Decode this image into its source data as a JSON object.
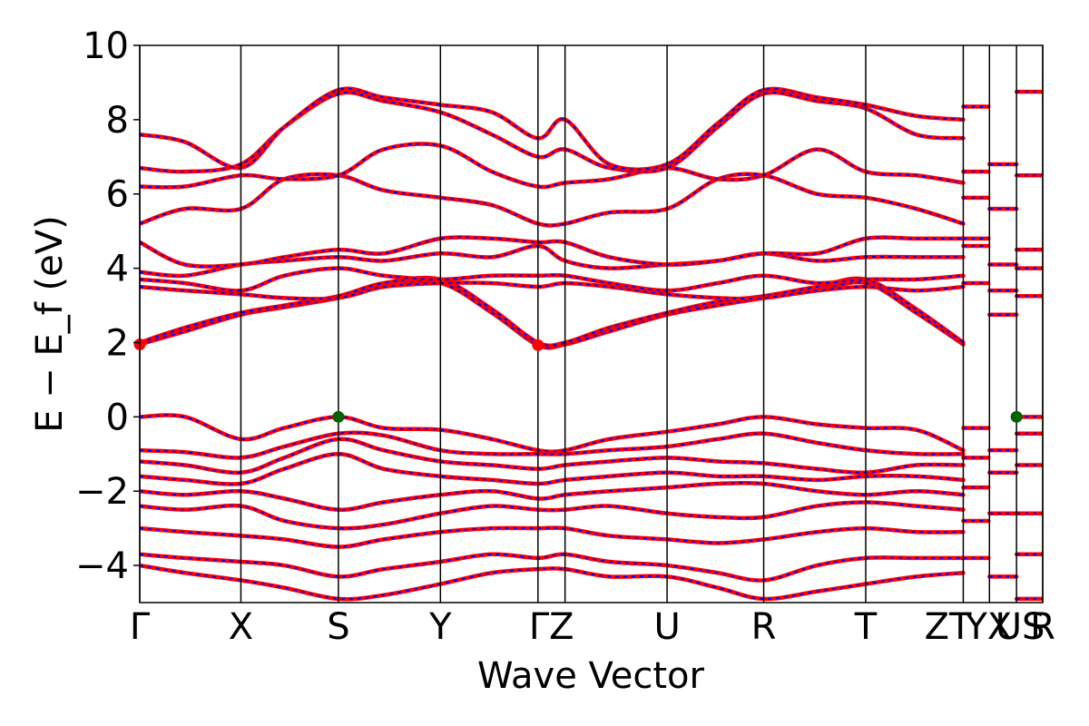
{
  "chart_data": {
    "type": "line",
    "title": "",
    "xlabel": "Wave Vector",
    "ylabel": "E − E_f (eV)",
    "ylim": [
      -5,
      10
    ],
    "yticks": [
      10,
      8,
      6,
      4,
      2,
      0,
      -2,
      -4
    ],
    "grid": false,
    "legend": "none",
    "colors": {
      "band_outer": "#ff0000",
      "band_inner": "#0000ff",
      "extremum": "#006400",
      "cbm_marker": "#ff0000",
      "frame": "#000000"
    },
    "kpath": [
      {
        "label": "Γ",
        "pos": 0.0
      },
      {
        "label": "X",
        "pos": 0.112
      },
      {
        "label": "S",
        "pos": 0.22
      },
      {
        "label": "Y",
        "pos": 0.333
      },
      {
        "label": "Γ",
        "pos": 0.441
      },
      {
        "label": "Z",
        "pos": 0.471
      },
      {
        "label": "U",
        "pos": 0.584
      },
      {
        "label": "R",
        "pos": 0.691
      },
      {
        "label": "T",
        "pos": 0.804
      },
      {
        "label": "Z",
        "pos": 0.912
      },
      {
        "label": "T",
        "pos": 0.912
      },
      {
        "label": "Y",
        "pos": 0.941
      },
      {
        "label": "X",
        "pos": 0.941
      },
      {
        "label": "U",
        "pos": 0.971
      },
      {
        "label": "S",
        "pos": 0.971
      },
      {
        "label": "R",
        "pos": 1.0
      }
    ],
    "tick_labels": [
      {
        "text": "Γ",
        "pos": 0.0
      },
      {
        "text": "X",
        "pos": 0.112
      },
      {
        "text": "S",
        "pos": 0.22
      },
      {
        "text": "Y",
        "pos": 0.333
      },
      {
        "text": "ΓZ",
        "pos": 0.456
      },
      {
        "text": "U",
        "pos": 0.584
      },
      {
        "text": "R",
        "pos": 0.691
      },
      {
        "text": "T",
        "pos": 0.804
      },
      {
        "text": "ZT",
        "pos": 0.895
      },
      {
        "text": "YX",
        "pos": 0.94
      },
      {
        "text": "US",
        "pos": 0.975
      },
      {
        "text": "R",
        "pos": 1.0
      }
    ],
    "markers": [
      {
        "kind": "VBM",
        "x": 0.22,
        "y": 0.0
      },
      {
        "kind": "VBM",
        "x": 0.971,
        "y": 0.0
      },
      {
        "kind": "CBM",
        "x": 0.0,
        "y": 1.95
      },
      {
        "kind": "CBM",
        "x": 0.441,
        "y": 1.93
      }
    ],
    "series": [
      {
        "x": [
          0,
          0.05,
          0.112,
          0.16,
          0.22,
          0.27,
          0.333,
          0.39,
          0.441,
          0.471,
          0.52,
          0.584,
          0.64,
          0.691,
          0.75,
          0.804,
          0.86,
          0.912
        ],
        "values": [
          1.95,
          2.3,
          2.75,
          2.95,
          3.2,
          3.5,
          3.6,
          2.8,
          1.93,
          1.95,
          2.3,
          2.75,
          3.0,
          3.2,
          3.4,
          3.6,
          2.8,
          1.95
        ]
      },
      {
        "x": [
          0,
          0.05,
          0.112,
          0.16,
          0.22,
          0.27,
          0.333,
          0.39,
          0.441,
          0.471,
          0.52,
          0.584,
          0.64,
          0.691,
          0.75,
          0.804,
          0.86,
          0.912
        ],
        "values": [
          2.0,
          2.4,
          2.8,
          3.0,
          3.25,
          3.6,
          3.7,
          2.9,
          2.0,
          2.0,
          2.4,
          2.8,
          3.1,
          3.25,
          3.5,
          3.7,
          2.9,
          2.0
        ]
      },
      {
        "x": [
          0,
          0.05,
          0.112,
          0.16,
          0.22,
          0.27,
          0.333,
          0.39,
          0.441,
          0.471,
          0.52,
          0.584,
          0.64,
          0.691,
          0.75,
          0.804,
          0.86,
          0.912
        ],
        "values": [
          3.5,
          3.4,
          3.3,
          3.2,
          3.2,
          3.5,
          3.6,
          3.6,
          3.5,
          3.6,
          3.5,
          3.3,
          3.2,
          3.2,
          3.4,
          3.5,
          3.4,
          3.5
        ]
      },
      {
        "x": [
          0,
          0.05,
          0.112,
          0.16,
          0.22,
          0.27,
          0.333,
          0.39,
          0.441,
          0.471,
          0.52,
          0.584,
          0.64,
          0.691,
          0.75,
          0.804,
          0.86,
          0.912
        ],
        "values": [
          3.7,
          3.6,
          3.4,
          3.8,
          4.0,
          3.8,
          3.7,
          3.8,
          3.8,
          3.8,
          3.6,
          3.4,
          3.6,
          3.8,
          3.6,
          3.7,
          3.7,
          3.8
        ]
      },
      {
        "x": [
          0,
          0.05,
          0.112,
          0.16,
          0.22,
          0.27,
          0.333,
          0.39,
          0.441,
          0.471,
          0.52,
          0.584,
          0.64,
          0.691,
          0.75,
          0.804,
          0.86,
          0.912
        ],
        "values": [
          3.9,
          3.8,
          4.1,
          4.2,
          4.3,
          4.2,
          4.4,
          4.3,
          4.6,
          4.2,
          4.0,
          4.1,
          4.2,
          4.4,
          4.2,
          4.3,
          4.3,
          4.3
        ]
      },
      {
        "x": [
          0,
          0.05,
          0.112,
          0.16,
          0.22,
          0.27,
          0.333,
          0.39,
          0.441,
          0.471,
          0.52,
          0.584,
          0.64,
          0.691,
          0.75,
          0.804,
          0.86,
          0.912
        ],
        "values": [
          4.7,
          4.1,
          4.1,
          4.3,
          4.5,
          4.4,
          4.8,
          4.8,
          4.7,
          4.7,
          4.3,
          4.1,
          4.2,
          4.4,
          4.4,
          4.8,
          4.8,
          4.8
        ]
      },
      {
        "x": [
          0,
          0.05,
          0.112,
          0.16,
          0.22,
          0.27,
          0.333,
          0.39,
          0.441,
          0.471,
          0.52,
          0.584,
          0.64,
          0.691,
          0.75,
          0.804,
          0.86,
          0.912
        ],
        "values": [
          5.2,
          5.6,
          5.6,
          6.4,
          6.5,
          6.1,
          5.9,
          5.7,
          5.2,
          5.2,
          5.5,
          5.6,
          6.4,
          6.5,
          6.0,
          5.9,
          5.6,
          5.2
        ]
      },
      {
        "x": [
          0,
          0.05,
          0.112,
          0.16,
          0.22,
          0.27,
          0.333,
          0.39,
          0.441,
          0.471,
          0.52,
          0.584,
          0.64,
          0.691,
          0.75,
          0.804,
          0.86,
          0.912
        ],
        "values": [
          6.2,
          6.2,
          6.5,
          6.4,
          6.5,
          7.2,
          7.3,
          6.6,
          6.2,
          6.3,
          6.4,
          6.7,
          6.4,
          6.5,
          7.2,
          6.6,
          6.5,
          6.3
        ]
      },
      {
        "x": [
          0,
          0.05,
          0.112,
          0.16,
          0.22,
          0.27,
          0.333,
          0.39,
          0.441,
          0.471,
          0.52,
          0.584,
          0.64,
          0.691,
          0.75,
          0.804,
          0.86,
          0.912
        ],
        "values": [
          6.7,
          6.6,
          6.8,
          7.8,
          8.7,
          8.5,
          8.2,
          7.6,
          7.0,
          7.2,
          6.7,
          6.7,
          7.8,
          8.7,
          8.5,
          8.3,
          7.6,
          7.5
        ]
      },
      {
        "x": [
          0,
          0.05,
          0.112,
          0.16,
          0.22,
          0.27,
          0.333,
          0.39,
          0.441,
          0.471,
          0.52,
          0.584,
          0.64,
          0.691,
          0.75,
          0.804,
          0.86,
          0.912
        ],
        "values": [
          7.6,
          7.4,
          6.7,
          7.8,
          8.8,
          8.6,
          8.4,
          8.2,
          7.5,
          8.0,
          6.8,
          6.8,
          7.9,
          8.8,
          8.6,
          8.4,
          8.1,
          8.0
        ]
      },
      {
        "x": [
          0,
          0.05,
          0.112,
          0.16,
          0.22,
          0.27,
          0.333,
          0.39,
          0.441,
          0.471,
          0.52,
          0.584,
          0.64,
          0.691,
          0.75,
          0.804,
          0.86,
          0.912
        ],
        "values": [
          0.0,
          -0.0,
          -0.6,
          -0.3,
          0.0,
          -0.3,
          -0.35,
          -0.6,
          -0.9,
          -0.9,
          -0.6,
          -0.4,
          -0.2,
          0.0,
          -0.2,
          -0.3,
          -0.35,
          -0.9
        ]
      },
      {
        "x": [
          0,
          0.05,
          0.112,
          0.16,
          0.22,
          0.27,
          0.333,
          0.39,
          0.441,
          0.471,
          0.52,
          0.584,
          0.64,
          0.691,
          0.75,
          0.804,
          0.86,
          0.912
        ],
        "values": [
          -0.9,
          -0.95,
          -1.1,
          -0.8,
          -0.45,
          -0.5,
          -0.9,
          -1.0,
          -1.0,
          -1.0,
          -0.9,
          -0.8,
          -0.6,
          -0.45,
          -0.7,
          -0.9,
          -1.0,
          -1.0
        ]
      },
      {
        "x": [
          0,
          0.05,
          0.112,
          0.16,
          0.22,
          0.27,
          0.333,
          0.39,
          0.441,
          0.471,
          0.52,
          0.584,
          0.64,
          0.691,
          0.75,
          0.804,
          0.86,
          0.912
        ],
        "values": [
          -1.2,
          -1.3,
          -1.5,
          -1.1,
          -0.6,
          -0.9,
          -1.2,
          -1.3,
          -1.4,
          -1.3,
          -1.2,
          -1.1,
          -1.2,
          -1.25,
          -1.4,
          -1.5,
          -1.3,
          -1.3
        ]
      },
      {
        "x": [
          0,
          0.05,
          0.112,
          0.16,
          0.22,
          0.27,
          0.333,
          0.39,
          0.441,
          0.471,
          0.52,
          0.584,
          0.64,
          0.691,
          0.75,
          0.804,
          0.86,
          0.912
        ],
        "values": [
          -1.6,
          -1.7,
          -1.8,
          -1.4,
          -1.0,
          -1.4,
          -1.6,
          -1.7,
          -1.8,
          -1.7,
          -1.6,
          -1.5,
          -1.6,
          -1.6,
          -1.7,
          -1.6,
          -1.6,
          -1.7
        ]
      },
      {
        "x": [
          0,
          0.05,
          0.112,
          0.16,
          0.22,
          0.27,
          0.333,
          0.39,
          0.441,
          0.471,
          0.52,
          0.584,
          0.64,
          0.691,
          0.75,
          0.804,
          0.86,
          0.912
        ],
        "values": [
          -2.0,
          -2.1,
          -2.0,
          -2.2,
          -2.5,
          -2.3,
          -2.1,
          -2.0,
          -2.2,
          -2.1,
          -2.0,
          -1.9,
          -1.8,
          -1.8,
          -2.0,
          -2.1,
          -2.0,
          -2.1
        ]
      },
      {
        "x": [
          0,
          0.05,
          0.112,
          0.16,
          0.22,
          0.27,
          0.333,
          0.39,
          0.441,
          0.471,
          0.52,
          0.584,
          0.64,
          0.691,
          0.75,
          0.804,
          0.86,
          0.912
        ],
        "values": [
          -2.4,
          -2.5,
          -2.4,
          -2.8,
          -3.0,
          -2.9,
          -2.6,
          -2.4,
          -2.5,
          -2.5,
          -2.4,
          -2.6,
          -2.7,
          -2.7,
          -2.4,
          -2.3,
          -2.4,
          -2.5
        ]
      },
      {
        "x": [
          0,
          0.05,
          0.112,
          0.16,
          0.22,
          0.27,
          0.333,
          0.39,
          0.441,
          0.471,
          0.52,
          0.584,
          0.64,
          0.691,
          0.75,
          0.804,
          0.86,
          0.912
        ],
        "values": [
          -3.0,
          -3.1,
          -3.2,
          -3.3,
          -3.5,
          -3.3,
          -3.1,
          -3.0,
          -3.0,
          -3.0,
          -3.2,
          -3.3,
          -3.4,
          -3.3,
          -3.1,
          -3.0,
          -3.1,
          -3.1
        ]
      },
      {
        "x": [
          0,
          0.05,
          0.112,
          0.16,
          0.22,
          0.27,
          0.333,
          0.39,
          0.441,
          0.471,
          0.52,
          0.584,
          0.64,
          0.691,
          0.75,
          0.804,
          0.86,
          0.912
        ],
        "values": [
          -3.7,
          -3.8,
          -3.9,
          -4.0,
          -4.3,
          -4.1,
          -3.9,
          -3.7,
          -3.8,
          -3.7,
          -3.9,
          -4.0,
          -4.2,
          -4.4,
          -4.0,
          -3.8,
          -3.8,
          -3.8
        ]
      },
      {
        "x": [
          0,
          0.05,
          0.112,
          0.16,
          0.22,
          0.27,
          0.333,
          0.39,
          0.441,
          0.471,
          0.52,
          0.584,
          0.64,
          0.691,
          0.75,
          0.804,
          0.86,
          0.912
        ],
        "values": [
          -4.0,
          -4.2,
          -4.4,
          -4.6,
          -4.9,
          -4.8,
          -4.5,
          -4.2,
          -4.1,
          -4.1,
          -4.3,
          -4.3,
          -4.6,
          -4.9,
          -4.7,
          -4.5,
          -4.3,
          -4.2
        ]
      },
      {
        "x": [
          0.912,
          0.93,
          0.94
        ],
        "values": [
          5.9,
          5.9,
          5.9
        ]
      },
      {
        "x": [
          0.912,
          0.93,
          0.94
        ],
        "values": [
          6.6,
          6.6,
          6.6
        ]
      },
      {
        "x": [
          0.912,
          0.93,
          0.94
        ],
        "values": [
          8.35,
          8.35,
          8.35
        ]
      },
      {
        "x": [
          0.912,
          0.93,
          0.94
        ],
        "values": [
          4.8,
          4.8,
          4.8
        ]
      },
      {
        "x": [
          0.912,
          0.93,
          0.94
        ],
        "values": [
          4.6,
          4.6,
          4.6
        ]
      },
      {
        "x": [
          0.912,
          0.93,
          0.94
        ],
        "values": [
          3.6,
          3.6,
          3.6
        ]
      },
      {
        "x": [
          0.912,
          0.93,
          0.94
        ],
        "values": [
          -0.3,
          -0.3,
          -0.3
        ]
      },
      {
        "x": [
          0.912,
          0.93,
          0.94
        ],
        "values": [
          -1.1,
          -1.1,
          -1.1
        ]
      },
      {
        "x": [
          0.912,
          0.93,
          0.94
        ],
        "values": [
          -1.9,
          -1.9,
          -1.9
        ]
      },
      {
        "x": [
          0.912,
          0.93,
          0.94
        ],
        "values": [
          -2.8,
          -2.8,
          -2.8
        ]
      },
      {
        "x": [
          0.912,
          0.93,
          0.94
        ],
        "values": [
          -3.8,
          -3.8,
          -3.8
        ]
      },
      {
        "x": [
          0.941,
          0.955,
          0.971
        ],
        "values": [
          6.8,
          6.8,
          6.8
        ]
      },
      {
        "x": [
          0.941,
          0.955,
          0.971
        ],
        "values": [
          5.6,
          5.6,
          5.6
        ]
      },
      {
        "x": [
          0.941,
          0.955,
          0.971
        ],
        "values": [
          4.1,
          4.1,
          4.1
        ]
      },
      {
        "x": [
          0.941,
          0.955,
          0.971
        ],
        "values": [
          3.4,
          3.4,
          3.4
        ]
      },
      {
        "x": [
          0.941,
          0.955,
          0.971
        ],
        "values": [
          2.75,
          2.75,
          2.75
        ]
      },
      {
        "x": [
          0.941,
          0.955,
          0.971
        ],
        "values": [
          -0.9,
          -0.9,
          -0.9
        ]
      },
      {
        "x": [
          0.941,
          0.955,
          0.971
        ],
        "values": [
          -1.5,
          -1.5,
          -1.5
        ]
      },
      {
        "x": [
          0.941,
          0.955,
          0.971
        ],
        "values": [
          -2.6,
          -2.6,
          -2.6
        ]
      },
      {
        "x": [
          0.941,
          0.955,
          0.971
        ],
        "values": [
          -4.3,
          -4.3,
          -4.3
        ]
      },
      {
        "x": [
          0.971,
          0.985,
          1.0
        ],
        "values": [
          8.75,
          8.75,
          8.75
        ]
      },
      {
        "x": [
          0.971,
          0.985,
          1.0
        ],
        "values": [
          6.5,
          6.5,
          6.5
        ]
      },
      {
        "x": [
          0.971,
          0.985,
          1.0
        ],
        "values": [
          4.5,
          4.5,
          4.5
        ]
      },
      {
        "x": [
          0.971,
          0.985,
          1.0
        ],
        "values": [
          4.0,
          4.0,
          4.0
        ]
      },
      {
        "x": [
          0.971,
          0.985,
          1.0
        ],
        "values": [
          3.25,
          3.25,
          3.25
        ]
      },
      {
        "x": [
          0.971,
          0.985,
          1.0
        ],
        "values": [
          0.0,
          0.0,
          0.0
        ]
      },
      {
        "x": [
          0.971,
          0.985,
          1.0
        ],
        "values": [
          -0.45,
          -0.45,
          -0.45
        ]
      },
      {
        "x": [
          0.971,
          0.985,
          1.0
        ],
        "values": [
          -1.3,
          -1.3,
          -1.3
        ]
      },
      {
        "x": [
          0.971,
          0.985,
          1.0
        ],
        "values": [
          -2.6,
          -2.6,
          -2.6
        ]
      },
      {
        "x": [
          0.971,
          0.985,
          1.0
        ],
        "values": [
          -3.7,
          -3.7,
          -3.7
        ]
      },
      {
        "x": [
          0.971,
          0.985,
          1.0
        ],
        "values": [
          -4.9,
          -4.9,
          -4.9
        ]
      }
    ]
  }
}
